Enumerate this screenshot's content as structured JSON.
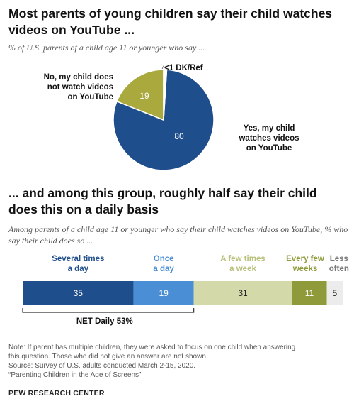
{
  "titles": {
    "main": "Most parents of young children say their child watches videos on YouTube ...",
    "main_subtitle": "% of U.S. parents of a child age 11 or younger who say ...",
    "second": "... and among this group, roughly half say their child does this on a daily basis",
    "second_subtitle": "Among parents of a child age 11 or younger who say their child watches videos on YouTube, % who say their child does so ..."
  },
  "chart_data": [
    {
      "type": "pie",
      "slices": [
        {
          "label": "Yes, my child watches videos on YouTube",
          "value": 80,
          "color": "#1f4e8c"
        },
        {
          "label": "No, my child does not watch videos on YouTube",
          "value": 19,
          "color": "#a9a93e"
        },
        {
          "label": "<1 DK/Ref",
          "value": 1,
          "color": "#ffffff"
        }
      ]
    },
    {
      "type": "bar",
      "orientation": "horizontal-stacked",
      "categories": [
        "Several times a day",
        "Once a day",
        "A few times a week",
        "Every few weeks",
        "Less often"
      ],
      "values": [
        35,
        19,
        31,
        11,
        5
      ],
      "colors": [
        "#1f4e8c",
        "#4a8fd6",
        "#d3d9a8",
        "#8f9a3a",
        "#ececec"
      ],
      "label_colors": [
        "#1f4e8c",
        "#4a8fd6",
        "#b9c07a",
        "#8f9a3a",
        "#777777"
      ],
      "annotation": "NET Daily 53%"
    }
  ],
  "pie_labels": {
    "yes_value": "80",
    "no_value": "19",
    "yes_line1": "Yes, my child",
    "yes_line2": "watches videos",
    "yes_line3": "on YouTube",
    "no_line1": "No, my child does",
    "no_line2": "not watch videos",
    "no_line3": "on YouTube",
    "dk": "<1 DK/Ref"
  },
  "bar_labels": [
    {
      "line1": "Several times",
      "line2": "a day"
    },
    {
      "line1": "Once",
      "line2": "a day"
    },
    {
      "line1": "A few times",
      "line2": "a week"
    },
    {
      "line1": "Every few",
      "line2": "weeks"
    },
    {
      "line1": "Less",
      "line2": "often"
    }
  ],
  "net_label": "NET Daily 53%",
  "notes": {
    "note_line1": "Note: If parent has multiple children, they were asked to focus on one child when answering",
    "note_line2": "this question. Those who did not give an answer are not shown.",
    "source": "Source: Survey of U.S. adults conducted March 2-15, 2020.",
    "report": "“Parenting Children in the Age of Screens”",
    "brand": "PEW RESEARCH CENTER"
  }
}
